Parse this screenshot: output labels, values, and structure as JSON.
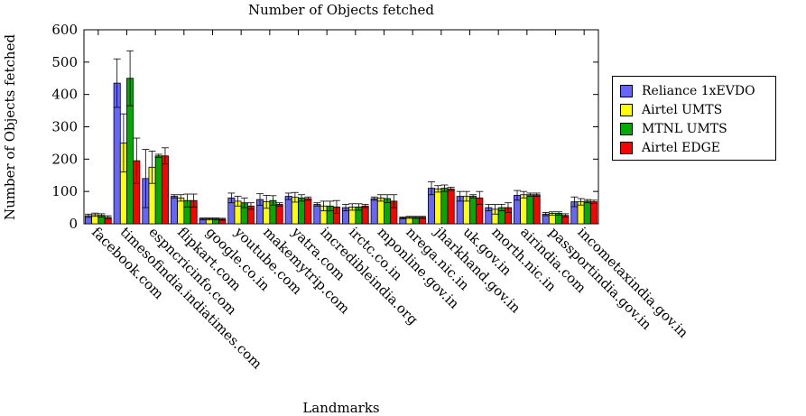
{
  "chart_data": {
    "type": "bar",
    "title": "Number of Objects fetched",
    "xlabel": "Landmarks",
    "ylabel": "Number of Objects fetched",
    "ylim": [
      0,
      600
    ],
    "yticks": [
      0,
      100,
      200,
      300,
      400,
      500,
      600
    ],
    "grid": false,
    "legend_position": "right",
    "error_bars": true,
    "categories": [
      "facebook.com",
      "timesofindia.indiatimes.com",
      "espncricinfo.com",
      "flipkart.com",
      "google.co.in",
      "youtube.com",
      "makemytrip.com",
      "yatra.com",
      "incredibleindia.org",
      "irctc.co.in",
      "mponline.gov.in",
      "nrega.nic.in",
      "jharkhand.gov.in",
      "uk.gov.in",
      "morth.nic.in",
      "airindia.com",
      "passportindia.gov.in",
      "incometaxindia.gov.in"
    ],
    "series": [
      {
        "name": "Reliance 1xEVDO",
        "color": "#6666ff",
        "values": [
          25,
          435,
          140,
          85,
          15,
          80,
          75,
          85,
          60,
          50,
          78,
          18,
          110,
          85,
          50,
          88,
          30,
          68
        ],
        "errors": [
          5,
          75,
          90,
          5,
          3,
          15,
          18,
          10,
          5,
          10,
          5,
          3,
          20,
          15,
          10,
          15,
          5,
          15
        ]
      },
      {
        "name": "Airtel UMTS",
        "color": "#ffff00",
        "values": [
          28,
          250,
          175,
          80,
          15,
          70,
          68,
          82,
          55,
          52,
          80,
          20,
          108,
          85,
          45,
          90,
          32,
          68
        ],
        "errors": [
          5,
          90,
          50,
          10,
          3,
          15,
          20,
          15,
          15,
          10,
          10,
          3,
          10,
          15,
          15,
          10,
          5,
          10
        ]
      },
      {
        "name": "MTNL UMTS",
        "color": "#00aa00",
        "values": [
          26,
          450,
          210,
          72,
          15,
          65,
          72,
          80,
          55,
          52,
          78,
          20,
          110,
          85,
          50,
          90,
          32,
          70
        ],
        "errors": [
          5,
          85,
          5,
          20,
          3,
          15,
          15,
          10,
          15,
          10,
          12,
          3,
          10,
          5,
          10,
          5,
          5,
          5
        ]
      },
      {
        "name": "Airtel EDGE",
        "color": "#ff0000",
        "values": [
          20,
          195,
          210,
          72,
          14,
          55,
          60,
          78,
          52,
          55,
          70,
          20,
          108,
          80,
          50,
          90,
          26,
          68
        ],
        "errors": [
          5,
          70,
          25,
          20,
          3,
          10,
          5,
          5,
          20,
          5,
          20,
          3,
          5,
          20,
          15,
          5,
          5,
          5
        ]
      }
    ]
  }
}
